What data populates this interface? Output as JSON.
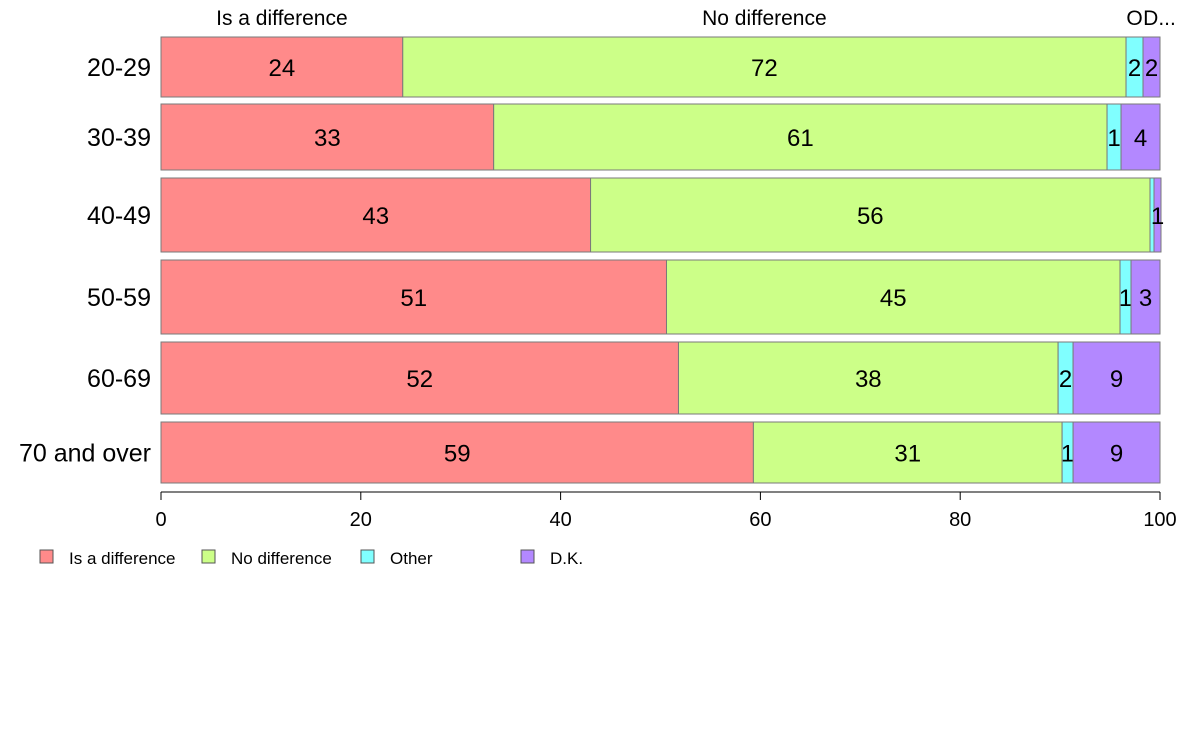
{
  "chart_data": {
    "type": "bar",
    "orientation": "horizontal",
    "stacked": true,
    "title": "",
    "xlabel": "",
    "ylabel": "",
    "xlim": [
      0,
      100
    ],
    "x_ticks": [
      0,
      20,
      40,
      60,
      80,
      100
    ],
    "grid": false,
    "legend_position": "bottom-left",
    "column_headers": [
      "Is a difference",
      "No difference",
      "O",
      "D..."
    ],
    "categories": [
      "20-29",
      "30-39",
      "40-49",
      "50-59",
      "60-69",
      "70 and over"
    ],
    "series": [
      {
        "name": "Is a difference",
        "color": "#ff8a8a",
        "values": [
          24.2,
          33.3,
          43.0,
          50.6,
          51.8,
          59.3
        ],
        "labels": [
          "24",
          "33",
          "43",
          "51",
          "52",
          "59"
        ]
      },
      {
        "name": "No difference",
        "color": "#ccff88",
        "values": [
          72.4,
          61.4,
          56.0,
          45.4,
          38.0,
          30.9
        ],
        "labels": [
          "72",
          "61",
          "56",
          "45",
          "38",
          "31"
        ]
      },
      {
        "name": "Other",
        "color": "#80ffff",
        "values": [
          1.7,
          1.4,
          0.4,
          1.1,
          1.5,
          1.1
        ],
        "labels": [
          "2",
          "1",
          "",
          "1",
          "2",
          "1"
        ]
      },
      {
        "name": "D.K.",
        "color": "#b388ff",
        "values": [
          1.7,
          3.9,
          0.7,
          2.9,
          8.7,
          8.7
        ],
        "labels": [
          "2",
          "4",
          "1",
          "3",
          "9",
          "9"
        ]
      }
    ]
  }
}
